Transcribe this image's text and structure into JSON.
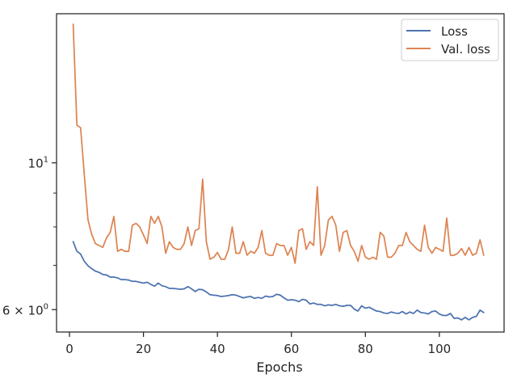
{
  "chart_data": {
    "type": "line",
    "title": "",
    "xlabel": "Epochs",
    "ylabel": "",
    "xlim": [
      -3.5,
      117.5
    ],
    "ylim": [
      5.55,
      16.8
    ],
    "yscale": "log",
    "grid": false,
    "legend_position": "top-right",
    "x_ticks": [
      0,
      20,
      40,
      60,
      80,
      100
    ],
    "x_tick_labels": [
      "0",
      "20",
      "40",
      "60",
      "80",
      "100"
    ],
    "y_major_ticks": [
      {
        "value": 10,
        "base": "10",
        "exp": "1"
      },
      {
        "value": 6,
        "base": "6 × 10",
        "exp": "0"
      }
    ],
    "y_minor_ticks": [
      7,
      8,
      9
    ],
    "series": [
      {
        "name": "Loss",
        "color": "#4c72b0",
        "x_start": 1,
        "values": [
          7.6,
          7.35,
          7.28,
          7.1,
          6.99,
          6.92,
          6.86,
          6.83,
          6.78,
          6.77,
          6.72,
          6.72,
          6.7,
          6.66,
          6.66,
          6.65,
          6.62,
          6.62,
          6.6,
          6.58,
          6.6,
          6.55,
          6.51,
          6.58,
          6.52,
          6.5,
          6.46,
          6.46,
          6.45,
          6.44,
          6.45,
          6.5,
          6.45,
          6.39,
          6.44,
          6.43,
          6.38,
          6.32,
          6.31,
          6.3,
          6.28,
          6.29,
          6.3,
          6.32,
          6.31,
          6.28,
          6.25,
          6.27,
          6.28,
          6.24,
          6.26,
          6.24,
          6.29,
          6.27,
          6.28,
          6.33,
          6.31,
          6.25,
          6.2,
          6.21,
          6.2,
          6.17,
          6.22,
          6.2,
          6.12,
          6.14,
          6.11,
          6.11,
          6.08,
          6.1,
          6.09,
          6.11,
          6.08,
          6.07,
          6.09,
          6.09,
          6.01,
          5.97,
          6.08,
          6.03,
          6.05,
          6.01,
          5.97,
          5.96,
          5.93,
          5.92,
          5.95,
          5.93,
          5.92,
          5.96,
          5.91,
          5.95,
          5.92,
          5.99,
          5.94,
          5.93,
          5.91,
          5.96,
          5.97,
          5.91,
          5.88,
          5.88,
          5.92,
          5.82,
          5.83,
          5.79,
          5.84,
          5.79,
          5.84,
          5.86,
          5.99,
          5.94
        ]
      },
      {
        "name": "Val. loss",
        "color": "#dd8452",
        "x_start": 1,
        "values": [
          16.2,
          11.4,
          11.3,
          9.6,
          8.2,
          7.8,
          7.55,
          7.5,
          7.45,
          7.7,
          7.85,
          8.3,
          7.35,
          7.4,
          7.35,
          7.35,
          8.05,
          8.1,
          8.0,
          7.78,
          7.55,
          8.3,
          8.1,
          8.3,
          8.0,
          7.3,
          7.6,
          7.45,
          7.4,
          7.4,
          7.55,
          8.0,
          7.5,
          7.9,
          7.95,
          9.45,
          7.6,
          7.15,
          7.2,
          7.32,
          7.15,
          7.15,
          7.4,
          8.0,
          7.3,
          7.3,
          7.6,
          7.25,
          7.35,
          7.3,
          7.45,
          7.9,
          7.3,
          7.25,
          7.25,
          7.55,
          7.5,
          7.5,
          7.25,
          7.45,
          7.05,
          7.9,
          7.95,
          7.4,
          7.6,
          7.5,
          9.2,
          7.25,
          7.5,
          8.2,
          8.3,
          8.05,
          7.35,
          7.85,
          7.9,
          7.5,
          7.35,
          7.1,
          7.5,
          7.2,
          7.15,
          7.2,
          7.15,
          7.85,
          7.75,
          7.2,
          7.2,
          7.3,
          7.5,
          7.5,
          7.85,
          7.6,
          7.5,
          7.4,
          7.35,
          8.05,
          7.45,
          7.3,
          7.45,
          7.4,
          7.35,
          8.25,
          7.25,
          7.25,
          7.3,
          7.42,
          7.25,
          7.45,
          7.25,
          7.3,
          7.65,
          7.25
        ]
      }
    ]
  }
}
